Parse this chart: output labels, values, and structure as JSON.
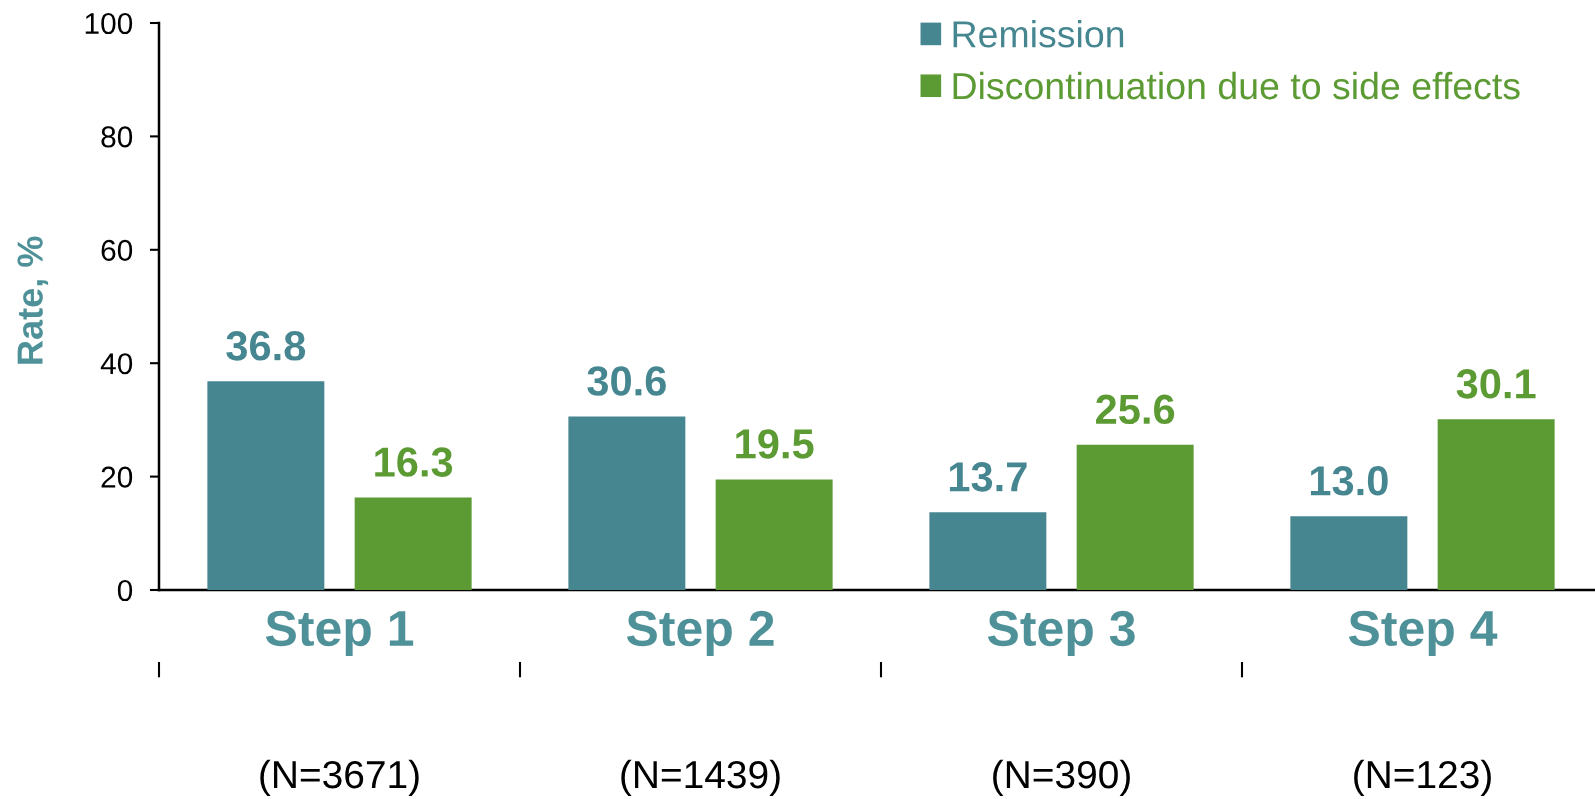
{
  "chart_data": {
    "type": "bar",
    "ylabel": "Rate, %",
    "categories": [
      "Step 1",
      "Step 2",
      "Step 3",
      "Step 4"
    ],
    "series": [
      {
        "name": "Remission",
        "color": "#468690",
        "values": [
          36.8,
          30.6,
          13.7,
          13.0
        ],
        "value_labels": [
          "36.8",
          "30.6",
          "13.7",
          "13.0"
        ]
      },
      {
        "name": "Discontinuation due to side effects",
        "color": "#5c9a33",
        "values": [
          16.3,
          19.5,
          25.6,
          30.1
        ],
        "value_labels": [
          "16.3",
          "19.5",
          "25.6",
          "30.1"
        ]
      }
    ],
    "ylim": [
      0,
      100
    ],
    "yticks": [
      0,
      20,
      40,
      60,
      80,
      100
    ],
    "legend": "top right",
    "annotations": [
      "(N=3671)",
      "(N=1439)",
      "(N=390)",
      "(N=123)"
    ]
  }
}
